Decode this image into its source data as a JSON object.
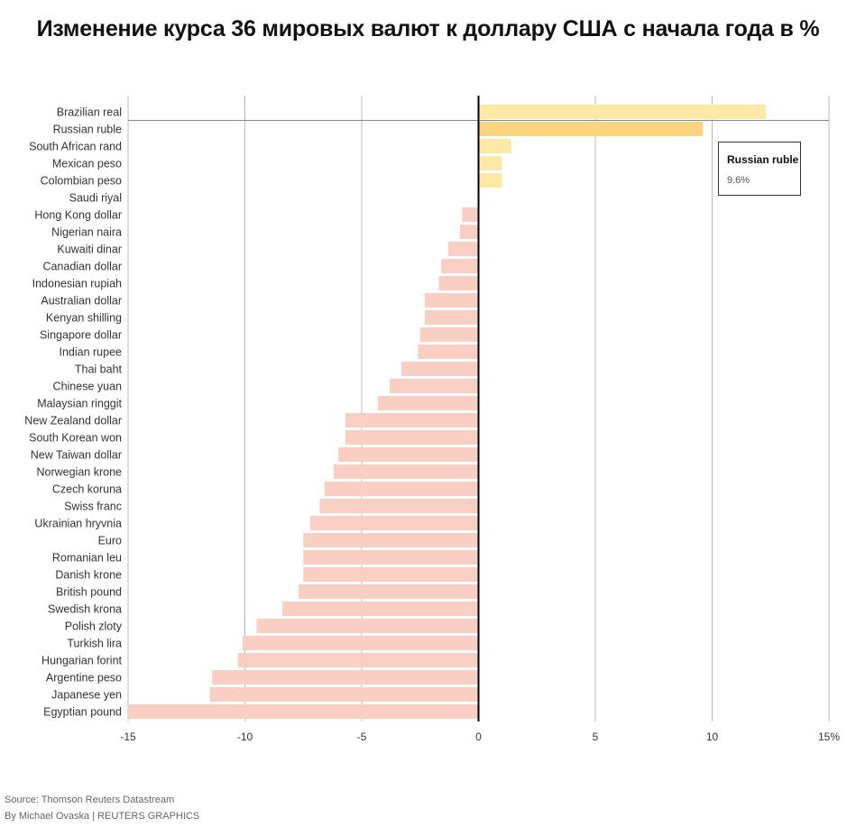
{
  "colors": {
    "positive": "#fde8a6",
    "highlight": "#fdd47e",
    "negative": "#f9cfc4",
    "grid": "#bbbbbb",
    "axis": "#000000"
  },
  "tooltip": {
    "name": "Russian ruble",
    "value": "9.6%"
  },
  "source": {
    "line1": "Source: Thomson Reuters Datastream",
    "line2": "By Michael Ovaska | REUTERS GRAPHICS"
  },
  "chart_data": {
    "type": "bar",
    "orientation": "horizontal",
    "title": "Изменение курса 36 мировых валют к доллару США с начала года в %",
    "xlabel": "",
    "ylabel": "",
    "xlim": [
      -15,
      15
    ],
    "xticks": [
      -15,
      -10,
      -5,
      0,
      5,
      10,
      15
    ],
    "xtick_labels": [
      "-15",
      "-10",
      "-5",
      "0",
      "5",
      "10",
      "15%"
    ],
    "grid": true,
    "highlighted": "Russian ruble",
    "categories": [
      "Brazilian real",
      "Russian ruble",
      "South African rand",
      "Mexican peso",
      "Colombian peso",
      "Saudi riyal",
      "Hong Kong dollar",
      "Nigerian naira",
      "Kuwaiti dinar",
      "Canadian dollar",
      "Indonesian rupiah",
      "Australian dollar",
      "Kenyan shilling",
      "Singapore dollar",
      "Indian rupee",
      "Thai baht",
      "Chinese yuan",
      "Malaysian ringgit",
      "New Zealand dollar",
      "South Korean won",
      "New Taiwan dollar",
      "Norwegian krone",
      "Czech koruna",
      "Swiss franc",
      "Ukrainian hryvnia",
      "Euro",
      "Romanian leu",
      "Danish krone",
      "British pound",
      "Swedish krona",
      "Polish zloty",
      "Turkish lira",
      "Hungarian forint",
      "Argentine peso",
      "Japanese yen",
      "Egyptian pound"
    ],
    "values": [
      12.3,
      9.6,
      1.4,
      1.0,
      1.0,
      0.05,
      -0.7,
      -0.8,
      -1.3,
      -1.6,
      -1.7,
      -2.3,
      -2.3,
      -2.5,
      -2.6,
      -3.3,
      -3.8,
      -4.3,
      -5.7,
      -5.7,
      -6.0,
      -6.2,
      -6.6,
      -6.8,
      -7.2,
      -7.5,
      -7.5,
      -7.5,
      -7.7,
      -8.4,
      -9.5,
      -10.1,
      -10.3,
      -11.4,
      -11.5,
      -15.0
    ]
  }
}
